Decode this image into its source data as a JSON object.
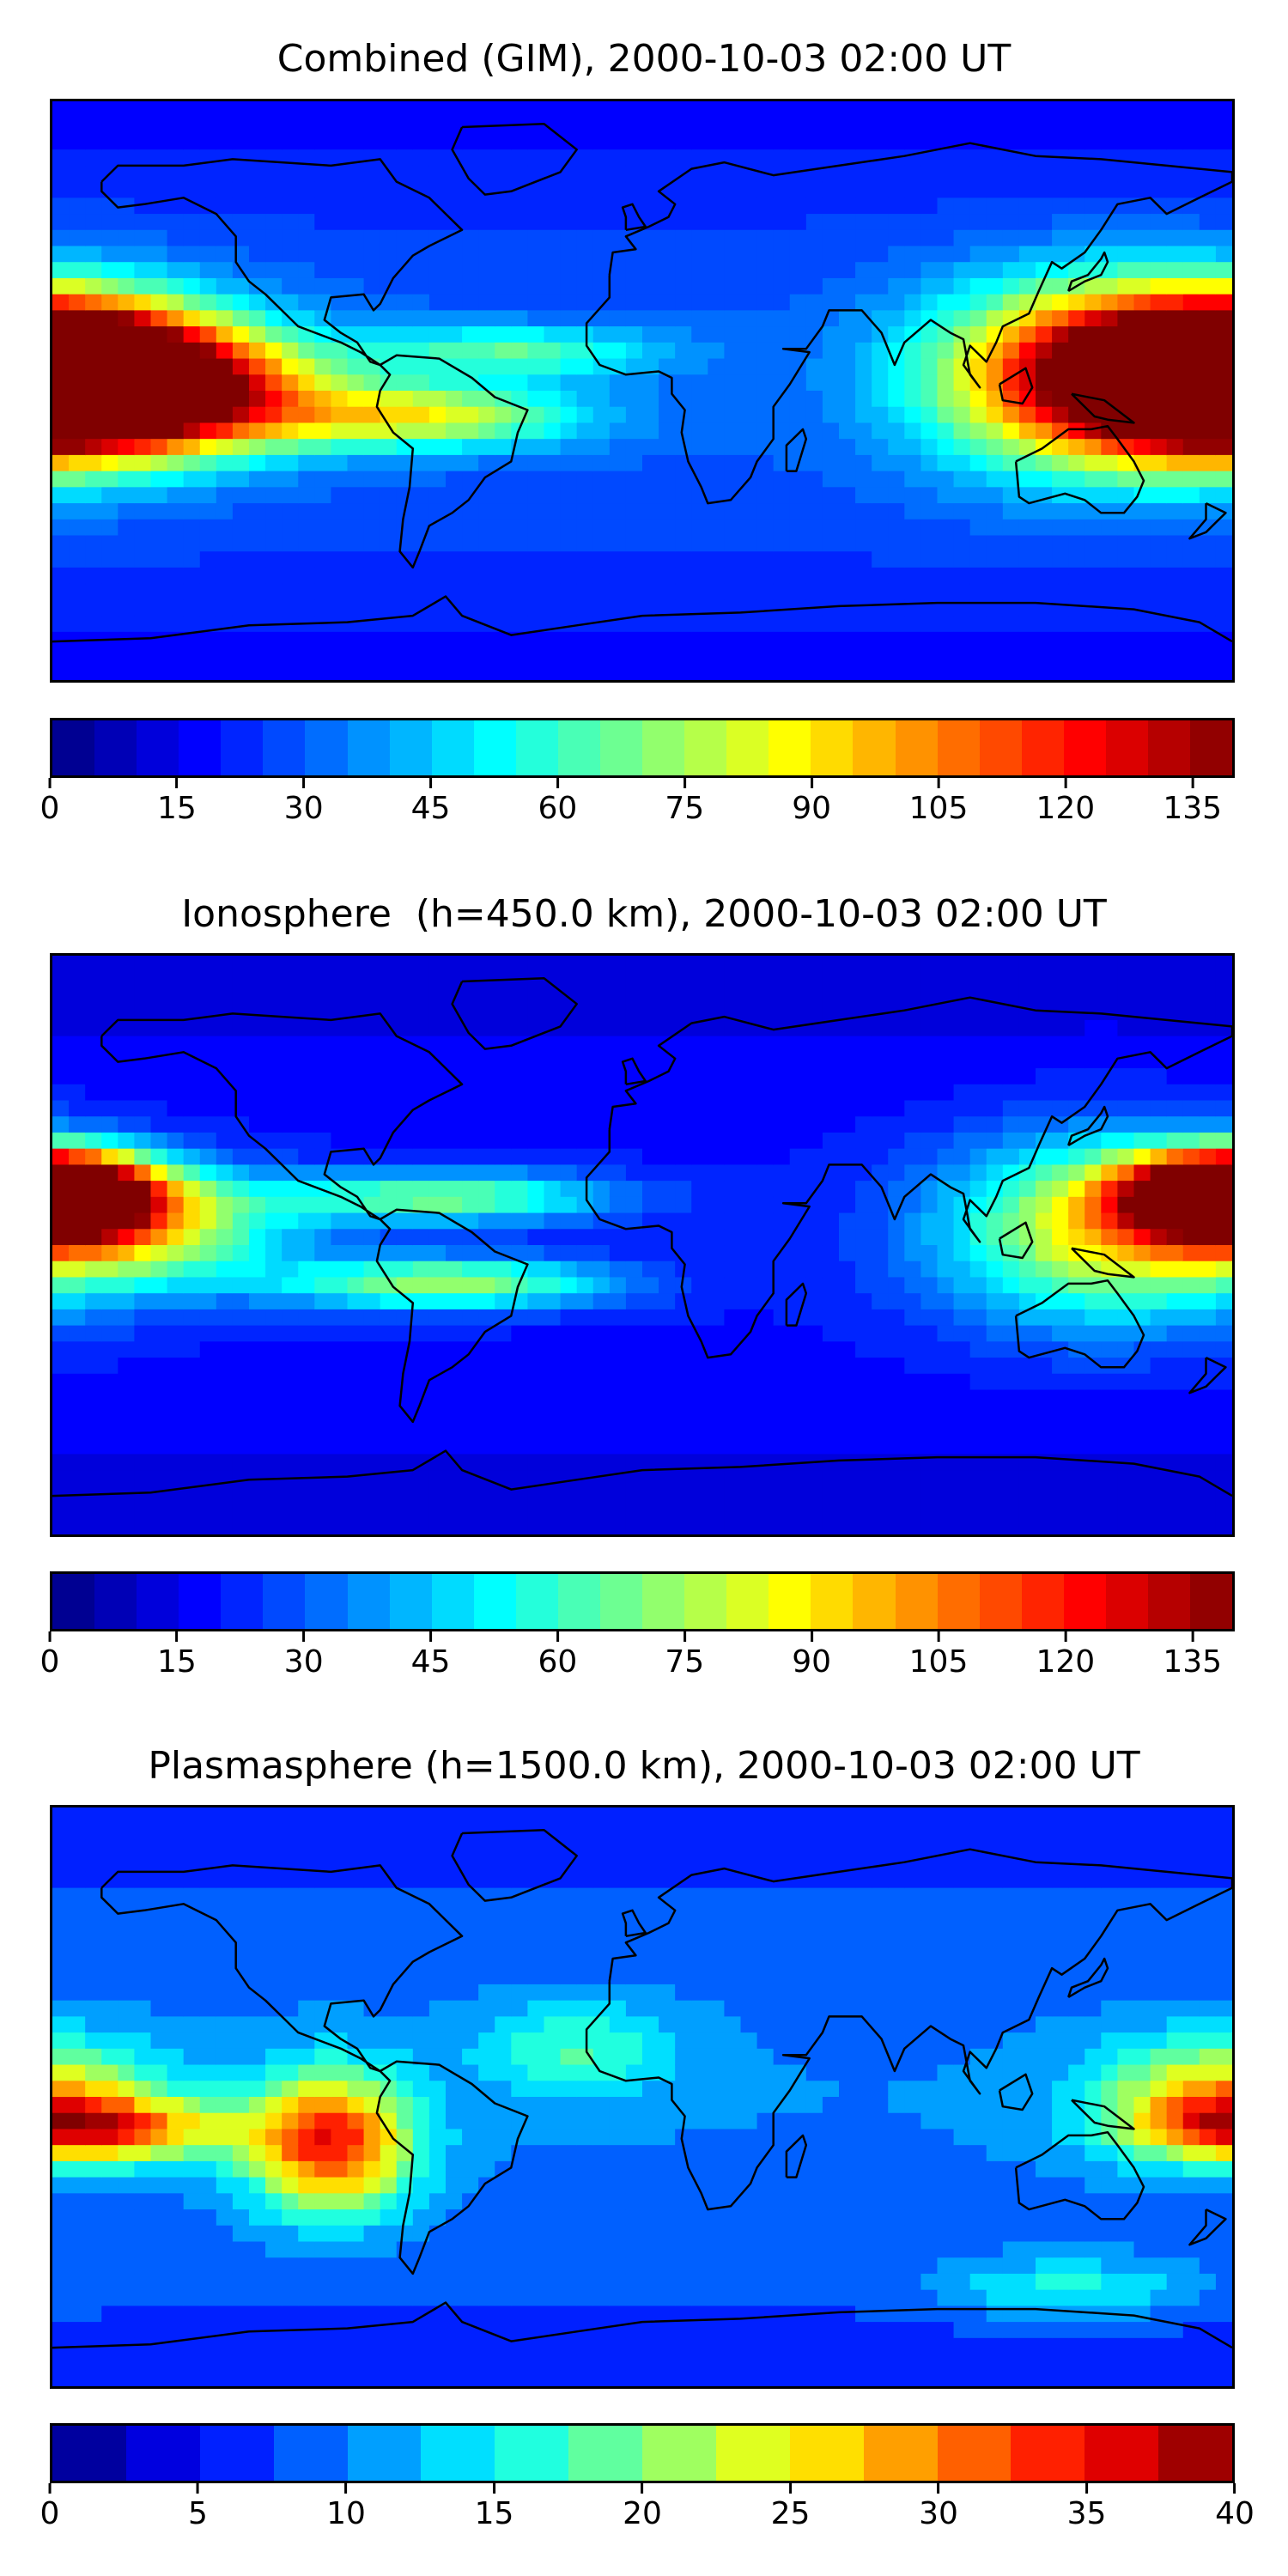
{
  "panels": [
    {
      "title": "Combined (GIM), 2000-10-03 02:00 UT",
      "colorbar": {
        "min": 0,
        "max": 140,
        "levels": 28,
        "ticks": [
          "0",
          "15",
          "30",
          "45",
          "60",
          "75",
          "90",
          "105",
          "120",
          "135"
        ],
        "tick_values": [
          0,
          15,
          30,
          45,
          60,
          75,
          90,
          105,
          120,
          135
        ]
      },
      "blobs": [
        {
          "lon": -180,
          "lat": 5,
          "rlon": 55,
          "rlat": 25,
          "v": 130
        },
        {
          "lon": 180,
          "lat": 5,
          "rlon": 40,
          "rlat": 20,
          "v": 130
        },
        {
          "lon": -150,
          "lat": 0,
          "rlon": 50,
          "rlat": 18,
          "v": 110
        },
        {
          "lon": 135,
          "lat": 5,
          "rlon": 50,
          "rlat": 30,
          "v": 100
        },
        {
          "lon": -70,
          "lat": -8,
          "rlon": 50,
          "rlat": 10,
          "v": 85
        },
        {
          "lon": -40,
          "lat": 12,
          "rlon": 45,
          "rlat": 8,
          "v": 65
        }
      ],
      "background": 30
    },
    {
      "title": "Ionosphere  (h=450.0 km), 2000-10-03 02:00 UT",
      "colorbar": {
        "min": 0,
        "max": 140,
        "levels": 28,
        "ticks": [
          "0",
          "15",
          "30",
          "45",
          "60",
          "75",
          "90",
          "105",
          "120",
          "135"
        ],
        "tick_values": [
          0,
          15,
          30,
          45,
          60,
          75,
          90,
          105,
          120,
          135
        ]
      },
      "blobs": [
        {
          "lon": -180,
          "lat": 18,
          "rlon": 30,
          "rlat": 12,
          "v": 110
        },
        {
          "lon": 180,
          "lat": 15,
          "rlon": 30,
          "rlat": 12,
          "v": 110
        },
        {
          "lon": -160,
          "lat": 5,
          "rlon": 50,
          "rlat": 18,
          "v": 85
        },
        {
          "lon": 140,
          "lat": 5,
          "rlon": 50,
          "rlat": 30,
          "v": 80
        },
        {
          "lon": -60,
          "lat": -12,
          "rlon": 50,
          "rlat": 8,
          "v": 75
        },
        {
          "lon": -60,
          "lat": 15,
          "rlon": 50,
          "rlat": 8,
          "v": 70
        }
      ],
      "background": 20
    },
    {
      "title": "Plasmasphere (h=1500.0 km), 2000-10-03 02:00 UT",
      "colorbar": {
        "min": 0,
        "max": 40,
        "levels": 16,
        "ticks": [
          "0",
          "5",
          "10",
          "15",
          "20",
          "25",
          "30",
          "35",
          "40"
        ],
        "tick_values": [
          0,
          5,
          10,
          15,
          20,
          25,
          30,
          35,
          40
        ]
      },
      "blobs": [
        {
          "lon": -95,
          "lat": -15,
          "rlon": 25,
          "rlat": 22,
          "v": 35
        },
        {
          "lon": -165,
          "lat": -10,
          "rlon": 40,
          "rlat": 10,
          "v": 30
        },
        {
          "lon": 175,
          "lat": 0,
          "rlon": 35,
          "rlat": 18,
          "v": 27
        },
        {
          "lon": 130,
          "lat": -60,
          "rlon": 40,
          "rlat": 10,
          "v": 20
        },
        {
          "lon": -20,
          "lat": 15,
          "rlon": 30,
          "rlat": 15,
          "v": 18
        }
      ],
      "background": 10
    }
  ],
  "colormap": "jet"
}
